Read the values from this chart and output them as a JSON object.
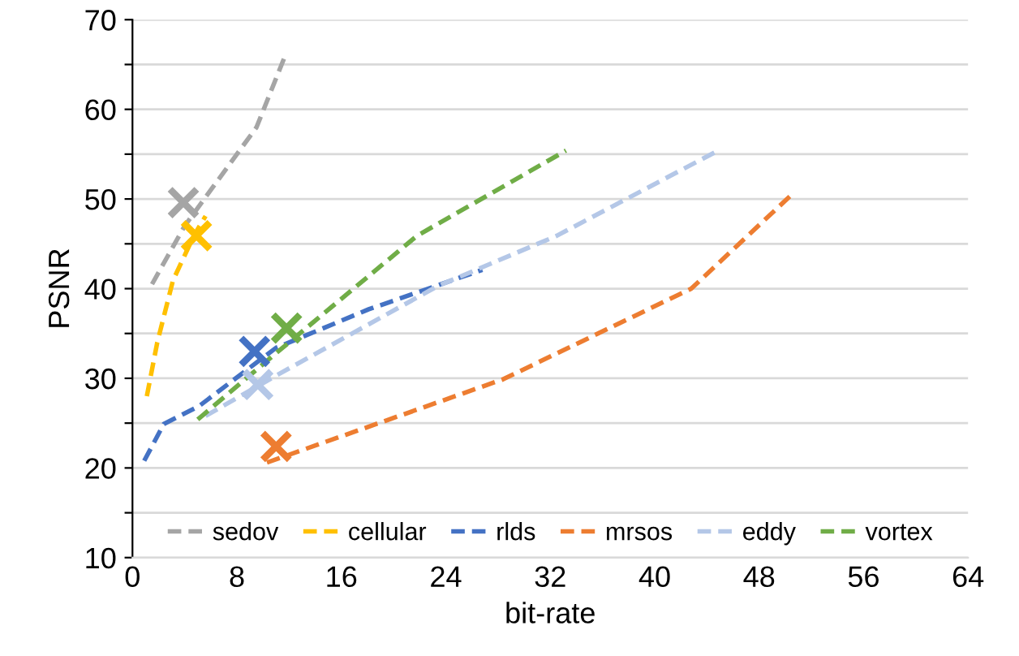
{
  "chart_data": {
    "type": "line",
    "xlabel": "bit-rate",
    "ylabel": "PSNR",
    "xlim": [
      0,
      64
    ],
    "xticks": [
      0,
      8,
      16,
      24,
      32,
      40,
      48,
      56,
      64
    ],
    "ylim": [
      10,
      70
    ],
    "yticks": [
      10,
      {
        "value": 15,
        "label": null
      },
      20,
      {
        "value": 25,
        "label": null
      },
      30,
      {
        "value": 35,
        "label": null
      },
      40,
      {
        "value": 45,
        "label": null
      },
      50,
      {
        "value": 55,
        "label": null
      },
      60,
      {
        "value": 65,
        "label": null
      },
      70
    ],
    "grid": "y",
    "legend": "bottom",
    "line_style": "dashed",
    "marker": "none",
    "series": [
      {
        "name": "sedov",
        "color": "#a5a5a5",
        "x": [
          1.5,
          4,
          6.5,
          9.5,
          11.7
        ],
        "values": [
          40.5,
          47,
          52,
          58,
          66
        ]
      },
      {
        "name": "cellular",
        "color": "#ffc000",
        "x": [
          1.1,
          1.9,
          3.1,
          4.7,
          5.6
        ],
        "values": [
          28,
          34,
          40.9,
          45.9,
          48.1
        ]
      },
      {
        "name": "rlds",
        "color": "#4472c4",
        "x": [
          0.9,
          2.4,
          5.1,
          11,
          18.1,
          26.8
        ],
        "values": [
          20.8,
          24.9,
          26.9,
          33.4,
          37.7,
          42.1
        ]
      },
      {
        "name": "mrsos",
        "color": "#ed7d31",
        "x": [
          10.3,
          28.4,
          42.8,
          50.5
        ],
        "values": [
          20.6,
          29.9,
          40,
          50.5
        ]
      },
      {
        "name": "eddy",
        "color": "#b4c7e7",
        "x": [
          5.6,
          11,
          23.4,
          32.5,
          44.6
        ],
        "values": [
          25.8,
          30.3,
          40.3,
          45.9,
          55.2
        ]
      },
      {
        "name": "vortex",
        "color": "#70ad47",
        "x": [
          5,
          11,
          21.8,
          33.2
        ],
        "values": [
          25.4,
          32.8,
          45.9,
          55.4
        ]
      },
      {
        "type": "scatter",
        "marker": "cross",
        "color": "#a5a5a5",
        "x": [
          3.9
        ],
        "values": [
          49.6
        ]
      },
      {
        "type": "scatter",
        "marker": "cross",
        "color": "#ffc000",
        "x": [
          4.9
        ],
        "values": [
          45.9
        ]
      },
      {
        "type": "scatter",
        "marker": "cross",
        "color": "#4472c4",
        "x": [
          9.35
        ],
        "values": [
          33
        ]
      },
      {
        "type": "scatter",
        "marker": "cross",
        "color": "#ed7d31",
        "x": [
          11
        ],
        "values": [
          22.4
        ]
      },
      {
        "type": "scatter",
        "marker": "cross",
        "color": "#b4c7e7",
        "x": [
          9.6
        ],
        "values": [
          29.3
        ]
      },
      {
        "type": "scatter",
        "marker": "cross",
        "color": "#70ad47",
        "x": [
          11.8
        ],
        "values": [
          35.6
        ]
      }
    ]
  }
}
